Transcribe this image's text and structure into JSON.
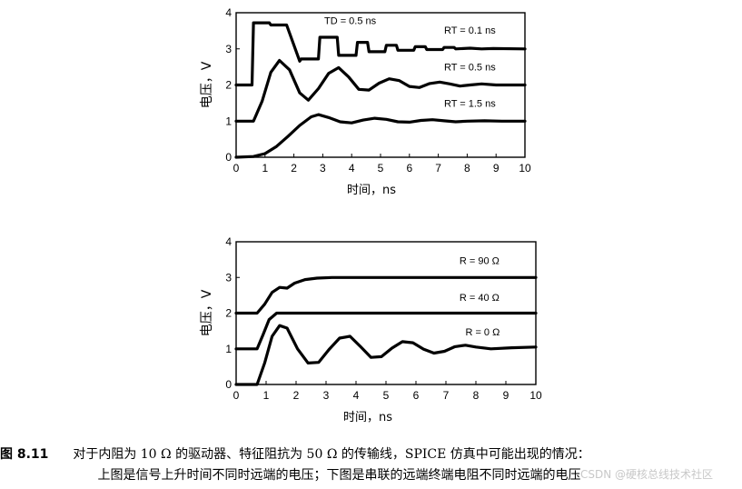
{
  "chart_data": [
    {
      "type": "line",
      "ylabel": "电压，V",
      "xlabel": "时间，ns",
      "xlim": [
        0,
        10
      ],
      "ylim": [
        0,
        4
      ],
      "xticks": [
        "0",
        "1",
        "2",
        "3",
        "4",
        "5",
        "6",
        "7",
        "8",
        "9",
        "10"
      ],
      "yticks": [
        "0",
        "1",
        "2",
        "3",
        "4"
      ],
      "annotations": [
        {
          "text": "TD = 0.5 ns",
          "x": 3.05,
          "y": 3.68
        },
        {
          "text": "RT = 0.1 ns",
          "x": 7.2,
          "y": 3.42
        },
        {
          "text": "RT = 0.5 ns",
          "x": 7.2,
          "y": 2.4
        },
        {
          "text": "RT = 1.5 ns",
          "x": 7.2,
          "y": 1.4
        }
      ],
      "series": [
        {
          "name": "RT = 0.1 ns",
          "x": [
            0,
            0.55,
            0.6,
            1.15,
            1.2,
            1.75,
            2.2,
            2.25,
            2.85,
            2.9,
            3.5,
            3.55,
            4.15,
            4.2,
            4.55,
            4.6,
            5.15,
            5.2,
            5.55,
            5.6,
            6.15,
            6.2,
            6.55,
            6.6,
            7.15,
            7.2,
            7.55,
            7.6,
            8.1,
            8.5,
            8.9,
            10
          ],
          "y": [
            2,
            2,
            3.72,
            3.72,
            3.66,
            3.66,
            2.66,
            2.72,
            2.72,
            3.32,
            3.32,
            2.82,
            2.82,
            3.18,
            3.18,
            2.92,
            2.92,
            3.1,
            3.1,
            2.96,
            2.96,
            3.06,
            3.06,
            2.98,
            2.98,
            3.04,
            3.04,
            3.0,
            3.02,
            3.0,
            3.01,
            3.0
          ]
        },
        {
          "name": "RT = 0.5 ns",
          "x": [
            0,
            0.6,
            0.9,
            1.2,
            1.5,
            1.85,
            2.2,
            2.5,
            2.85,
            3.2,
            3.55,
            3.9,
            4.25,
            4.6,
            4.95,
            5.3,
            5.65,
            6.0,
            6.35,
            6.7,
            7.05,
            7.4,
            7.75,
            8.1,
            8.5,
            9,
            10
          ],
          "y": [
            1,
            1.0,
            1.55,
            2.35,
            2.68,
            2.42,
            1.78,
            1.58,
            1.9,
            2.32,
            2.48,
            2.22,
            1.88,
            1.86,
            2.05,
            2.17,
            2.12,
            1.96,
            1.93,
            2.04,
            2.08,
            2.03,
            1.97,
            2.0,
            2.03,
            2.0,
            2.0
          ]
        },
        {
          "name": "RT = 1.5 ns",
          "x": [
            0,
            0.6,
            1.0,
            1.4,
            1.8,
            2.2,
            2.6,
            2.85,
            3.2,
            3.6,
            4.0,
            4.4,
            4.8,
            5.2,
            5.6,
            6.0,
            6.4,
            6.8,
            7.2,
            7.6,
            8.0,
            8.6,
            9.2,
            10
          ],
          "y": [
            0,
            0.02,
            0.1,
            0.3,
            0.58,
            0.88,
            1.12,
            1.18,
            1.1,
            0.98,
            0.95,
            1.03,
            1.08,
            1.05,
            0.98,
            0.97,
            1.02,
            1.04,
            1.01,
            0.98,
            1.0,
            1.01,
            1.0,
            1.0
          ]
        }
      ]
    },
    {
      "type": "line",
      "ylabel": "电压，V",
      "xlabel": "时间，ns",
      "xlim": [
        0,
        10
      ],
      "ylim": [
        0,
        4
      ],
      "xticks": [
        "0",
        "1",
        "2",
        "3",
        "4",
        "5",
        "6",
        "7",
        "8",
        "9",
        "10"
      ],
      "yticks": [
        "0",
        "1",
        "2",
        "3",
        "4"
      ],
      "annotations": [
        {
          "text": "R = 90 Ω",
          "x": 7.45,
          "y": 3.38
        },
        {
          "text": "R = 40 Ω",
          "x": 7.45,
          "y": 2.35
        },
        {
          "text": "R = 0 Ω",
          "x": 7.65,
          "y": 1.38
        }
      ],
      "series": [
        {
          "name": "R = 90 Ω",
          "x": [
            0,
            0.7,
            0.95,
            1.2,
            1.45,
            1.7,
            1.95,
            2.3,
            2.7,
            3.2,
            4,
            10
          ],
          "y": [
            2,
            2.0,
            2.25,
            2.58,
            2.72,
            2.7,
            2.84,
            2.94,
            2.98,
            3.0,
            3.0,
            3.0
          ]
        },
        {
          "name": "R = 40 Ω",
          "x": [
            0,
            0.7,
            0.9,
            1.1,
            1.35,
            1.6,
            2,
            10
          ],
          "y": [
            1,
            1.0,
            1.4,
            1.82,
            2.0,
            2.0,
            2.0,
            2.0
          ]
        },
        {
          "name": "R = 0 Ω",
          "x": [
            0,
            0.7,
            0.95,
            1.2,
            1.45,
            1.7,
            2.05,
            2.4,
            2.75,
            3.1,
            3.45,
            3.8,
            4.15,
            4.5,
            4.85,
            5.2,
            5.55,
            5.9,
            6.25,
            6.6,
            6.95,
            7.3,
            7.65,
            8.0,
            8.5,
            9.2,
            10
          ],
          "y": [
            0,
            0.0,
            0.6,
            1.35,
            1.65,
            1.58,
            1.0,
            0.6,
            0.62,
            0.98,
            1.3,
            1.35,
            1.06,
            0.76,
            0.78,
            1.02,
            1.2,
            1.17,
            0.99,
            0.88,
            0.93,
            1.06,
            1.1,
            1.05,
            1.0,
            1.03,
            1.05
          ]
        }
      ]
    }
  ],
  "caption": {
    "number": "图 8.11",
    "line1": "对于内阻为 10 Ω 的驱动器、特征阻抗为 50 Ω 的传输线，SPICE 仿真中可能出现的情况：",
    "line2": "上图是信号上升时间不同时远端的电压；下图是串联的远端终端电阻不同时远端的电压"
  },
  "watermark": "CSDN @硬核总线技术社区"
}
